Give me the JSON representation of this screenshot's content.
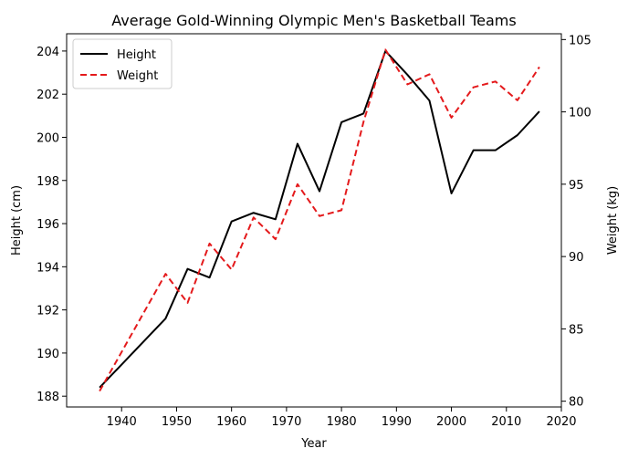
{
  "chart_data": {
    "type": "line",
    "title": "Average Gold-Winning Olympic Men's Basketball Teams",
    "xlabel": "Year",
    "ylabel_left": "Height (cm)",
    "ylabel_right": "Weight (kg)",
    "xlim": [
      1930,
      2020
    ],
    "ylim_left": [
      187.5,
      204.8
    ],
    "ylim_right": [
      79.6,
      105.4
    ],
    "xticks": [
      1940,
      1950,
      1960,
      1970,
      1980,
      1990,
      2000,
      2010,
      2020
    ],
    "yticks_left": [
      188,
      190,
      192,
      194,
      196,
      198,
      200,
      202,
      204
    ],
    "yticks_right": [
      80,
      85,
      90,
      95,
      100,
      105
    ],
    "grid": false,
    "legend_position": "upper-left",
    "series": [
      {
        "name": "Height",
        "axis": "left",
        "color": "#000000",
        "style": "solid",
        "x": [
          1936,
          1948,
          1952,
          1956,
          1960,
          1964,
          1968,
          1972,
          1976,
          1980,
          1984,
          1988,
          1992,
          1996,
          2000,
          2004,
          2008,
          2012,
          2016
        ],
        "values": [
          188.4,
          191.6,
          193.9,
          193.5,
          196.1,
          196.5,
          196.2,
          199.7,
          197.5,
          200.7,
          201.1,
          204.0,
          202.9,
          201.7,
          197.4,
          199.4,
          199.4,
          200.1,
          201.2
        ]
      },
      {
        "name": "Weight",
        "axis": "right",
        "color": "#e41a1c",
        "style": "dashed",
        "x": [
          1936,
          1948,
          1952,
          1956,
          1960,
          1964,
          1968,
          1972,
          1976,
          1980,
          1984,
          1988,
          1992,
          1996,
          2000,
          2004,
          2008,
          2012,
          2016
        ],
        "values": [
          80.7,
          88.8,
          86.8,
          90.9,
          89.1,
          92.7,
          91.2,
          95.0,
          92.8,
          93.2,
          99.3,
          104.3,
          101.9,
          102.6,
          99.6,
          101.7,
          102.1,
          100.8,
          103.1
        ]
      }
    ]
  }
}
